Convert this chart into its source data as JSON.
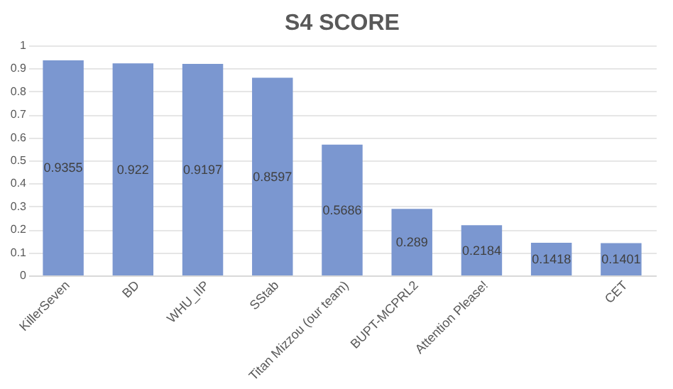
{
  "chart_data": {
    "type": "bar",
    "title": "S4 SCORE",
    "categories": [
      "KillerSeven",
      "BD",
      "WHU_IIP",
      "SStab",
      "Titan Mizzou (our team)",
      "BUPT-MCPRL2",
      "Attention Please!",
      null,
      "CET"
    ],
    "values": [
      0.9355,
      0.922,
      0.9197,
      0.8597,
      0.5686,
      0.289,
      0.2184,
      0.1418,
      0.1401
    ],
    "color": "#7b97d0",
    "ylim": [
      0,
      1
    ],
    "yticks": [
      0,
      0.1,
      0.2,
      0.3,
      0.4,
      0.5,
      0.6,
      0.7,
      0.8,
      0.9,
      1
    ],
    "grid": "y",
    "data_labels": true
  }
}
